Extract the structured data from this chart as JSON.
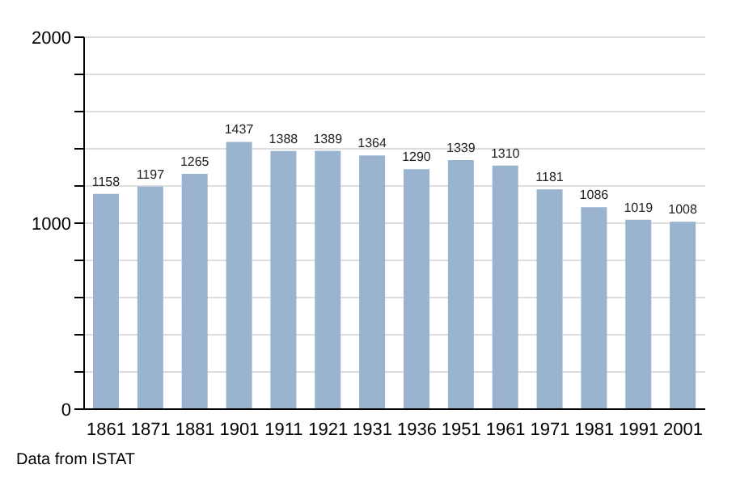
{
  "chart_data": {
    "type": "bar",
    "categories": [
      "1861",
      "1871",
      "1881",
      "1901",
      "1911",
      "1921",
      "1931",
      "1936",
      "1951",
      "1961",
      "1971",
      "1981",
      "1991",
      "2001"
    ],
    "values": [
      1158,
      1197,
      1265,
      1437,
      1388,
      1389,
      1364,
      1290,
      1339,
      1310,
      1181,
      1086,
      1019,
      1008
    ],
    "color": "#9ab3cf",
    "data_labels": true,
    "grid": "y",
    "ylim": [
      0,
      2000
    ],
    "yticks": [
      0,
      {
        "value": 200,
        "label": null
      },
      {
        "value": 400,
        "label": null
      },
      {
        "value": 600,
        "label": null
      },
      {
        "value": 800,
        "label": null
      },
      1000,
      {
        "value": 1200,
        "label": null
      },
      {
        "value": 1400,
        "label": null
      },
      {
        "value": 1600,
        "label": null
      },
      {
        "value": 1800,
        "label": null
      },
      2000
    ],
    "annotations": [
      "Data from ISTAT"
    ]
  }
}
